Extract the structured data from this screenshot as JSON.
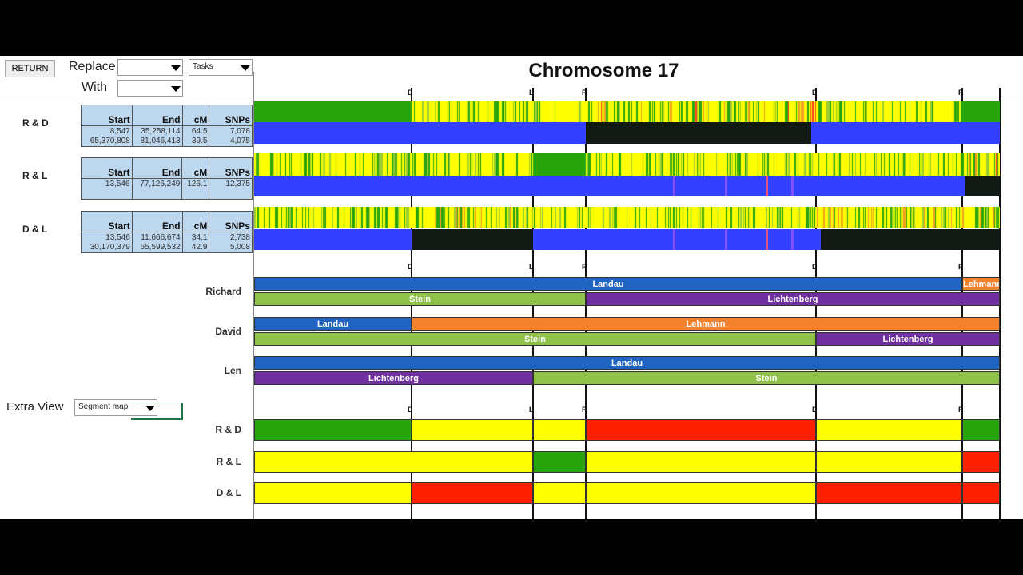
{
  "toolbar": {
    "return_label": "RETURN",
    "replace_label": "Replace",
    "with_label": "With",
    "replace_value": "",
    "with_value": "",
    "tasks_value": "Tasks"
  },
  "title": "Chromosome 17",
  "markers": [
    "D",
    "L",
    "R",
    "D",
    "R"
  ],
  "tables": [
    {
      "pair": "R & D",
      "headers": [
        "Start",
        "End",
        "cM",
        "SNPs"
      ],
      "rows": [
        [
          "8,547",
          "35,258,114",
          "64.5",
          "7,078"
        ],
        [
          "65,370,808",
          "81,046,413",
          "39.5",
          "4,075"
        ]
      ]
    },
    {
      "pair": "R & L",
      "headers": [
        "Start",
        "End",
        "cM",
        "SNPs"
      ],
      "rows": [
        [
          "13,546",
          "77,126,249",
          "126.1",
          "12,375"
        ],
        [
          "",
          "",
          "",
          ""
        ]
      ]
    },
    {
      "pair": "D & L",
      "headers": [
        "Start",
        "End",
        "cM",
        "SNPs"
      ],
      "rows": [
        [
          "13,546",
          "11,666,674",
          "34.1",
          "2,738"
        ],
        [
          "30,170,379",
          "65,599,532",
          "42.9",
          "5,008"
        ]
      ]
    }
  ],
  "people": [
    {
      "name": "Richard",
      "rows": [
        [
          "Landau",
          "Lehmann"
        ],
        [
          "Stein",
          "Lichtenberg"
        ]
      ]
    },
    {
      "name": "David",
      "rows": [
        [
          "Landau",
          "Lehmann"
        ],
        [
          "Stein",
          "Lichtenberg"
        ]
      ]
    },
    {
      "name": "Len",
      "rows": [
        [
          "Landau"
        ],
        [
          "Lichtenberg",
          "Stein"
        ]
      ]
    }
  ],
  "extra_view": {
    "label": "Extra View",
    "value": "Segment map"
  },
  "segment_map": [
    {
      "pair": "R & D",
      "colors": [
        "green",
        "yellow",
        "yellow",
        "red",
        "yellow",
        "green"
      ]
    },
    {
      "pair": "R & L",
      "colors": [
        "yellow",
        "green",
        "yellow",
        "yellow",
        "red"
      ]
    },
    {
      "pair": "D & L",
      "colors": [
        "yellow",
        "red",
        "yellow",
        "yellow",
        "red",
        "red"
      ]
    }
  ],
  "colors": {
    "Landau": "#1f64c0",
    "Lehmann": "#f4822e",
    "Stein": "#8fc24a",
    "Lichtenberg": "#7030a0",
    "green": "#28a40c",
    "yellow": "#ffff00",
    "red": "#ff2000",
    "match_blue": "#3340ff",
    "nomatch": "#111a14"
  }
}
